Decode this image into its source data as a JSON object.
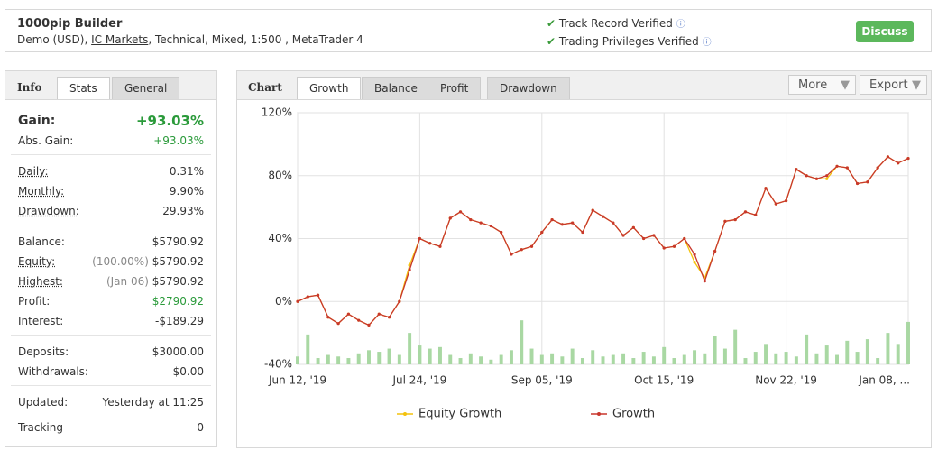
{
  "header": {
    "title": "1000pip Builder",
    "subtitle": [
      "Demo (USD), ",
      "IC Markets",
      ", Technical, Mixed, 1:500 , MetaTrader 4"
    ],
    "verified": [
      "Track Record Verified",
      "Trading Privileges Verified"
    ],
    "button": "Discuss"
  },
  "left": {
    "tabs": [
      "Info",
      "Stats",
      "General"
    ],
    "gain": {
      "label": "Gain:",
      "value": "+93.03%"
    },
    "groups": [
      [
        [
          "Abs. Gain:",
          "+93.03%"
        ]
      ],
      [
        [
          "Daily:",
          "0.31%"
        ],
        [
          "Monthly:",
          "9.90%"
        ],
        [
          "Drawdown:",
          "29.93%"
        ]
      ],
      [
        [
          "Balance:",
          "$5790.92"
        ],
        [
          "Equity:",
          "(100.00%)",
          "$5790.92"
        ],
        [
          "Highest:",
          "(Jan 06)",
          "$5790.92"
        ],
        [
          "Profit:",
          "$2790.92"
        ],
        [
          "Interest:",
          "-$189.29"
        ]
      ],
      [
        [
          "Deposits:",
          "$3000.00"
        ],
        [
          "Withdrawals:",
          "$0.00"
        ]
      ],
      [
        [
          "Updated:",
          "Yesterday at 11:25"
        ],
        [
          "Tracking",
          "0"
        ]
      ]
    ]
  },
  "right": {
    "tabs": [
      "Chart",
      "Growth",
      "Balance",
      "Profit",
      "Drawdown"
    ],
    "buttons": [
      "More",
      "Export"
    ],
    "chart": {
      "type": "line",
      "categories": [
        "Jun 12, '19",
        null,
        null,
        null,
        null,
        null,
        null,
        null,
        null,
        null,
        null,
        null,
        "Jul 24, '19",
        null,
        null,
        null,
        null,
        null,
        null,
        null,
        null,
        null,
        null,
        null,
        "Sep 05, '19",
        null,
        null,
        null,
        null,
        null,
        null,
        null,
        null,
        null,
        null,
        null,
        "Oct 15, '19",
        null,
        null,
        null,
        null,
        null,
        null,
        null,
        null,
        null,
        null,
        null,
        "Nov 22, '19",
        null,
        null,
        null,
        null,
        null,
        null,
        null,
        null,
        null,
        null,
        null,
        "Jan 08, ..."
      ],
      "series": [
        {
          "name": "Equity Growth",
          "color": "#f4c20d",
          "values": [
            0,
            3,
            4,
            -10,
            -14,
            -8,
            -12,
            -15,
            -8,
            -10,
            0,
            23,
            40,
            37,
            35,
            53,
            57,
            52,
            50,
            48,
            44,
            30,
            33,
            35,
            44,
            52,
            49,
            50,
            44,
            58,
            54,
            50,
            42,
            47,
            40,
            42,
            34,
            35,
            40,
            25,
            15,
            32,
            51,
            52,
            57,
            55,
            72,
            62,
            64,
            84,
            80,
            78,
            78,
            86,
            85,
            75,
            76,
            85,
            92,
            88,
            91
          ]
        },
        {
          "name": "Growth",
          "color": "#c8372d",
          "values": [
            0,
            3,
            4,
            -10,
            -14,
            -8,
            -12,
            -15,
            -8,
            -10,
            0,
            20,
            40,
            37,
            35,
            53,
            57,
            52,
            50,
            48,
            44,
            30,
            33,
            35,
            44,
            52,
            49,
            50,
            44,
            58,
            54,
            50,
            42,
            47,
            40,
            42,
            34,
            35,
            40,
            30,
            13,
            32,
            51,
            52,
            57,
            55,
            72,
            62,
            64,
            84,
            80,
            78,
            80,
            86,
            85,
            75,
            76,
            85,
            92,
            88,
            91
          ]
        }
      ],
      "bars": {
        "color": "#a9d8a3",
        "values": [
          -35,
          -21,
          -36,
          -34,
          -35,
          -36,
          -33,
          -31,
          -32,
          -30,
          -34,
          -20,
          -28,
          -30,
          -29,
          -34,
          -36,
          -33,
          -35,
          -37,
          -34,
          -31,
          -12,
          -30,
          -34,
          -33,
          -35,
          -30,
          -36,
          -31,
          -35,
          -34,
          -33,
          -36,
          -32,
          -35,
          -29,
          -36,
          -34,
          -31,
          -33,
          -22,
          -30,
          -18,
          -36,
          -32,
          -27,
          -33,
          -32,
          -35,
          -21,
          -33,
          -28,
          -34,
          -25,
          -32,
          -24,
          -36,
          -20,
          -27,
          -13
        ]
      },
      "ylim": [
        -40,
        120
      ],
      "yticks": [
        {
          "value": -40,
          "label": "-40%"
        },
        {
          "value": 0,
          "label": "0%"
        },
        {
          "value": 40,
          "label": "40%"
        },
        {
          "value": 80,
          "label": "80%"
        },
        {
          "value": 120,
          "label": "120%"
        }
      ]
    }
  }
}
